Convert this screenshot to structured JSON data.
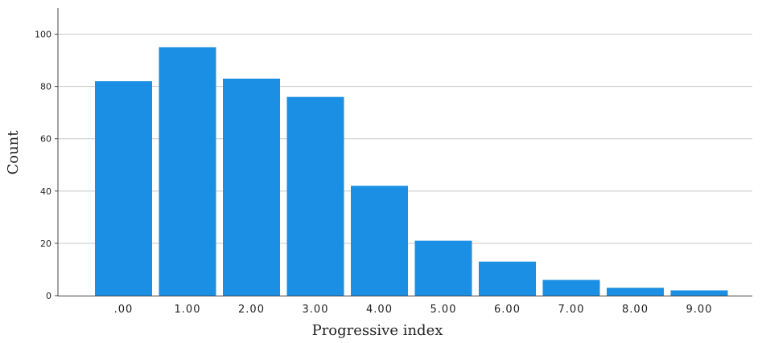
{
  "chart_data": {
    "type": "bar",
    "categories": [
      ".00",
      "1.00",
      "2.00",
      "3.00",
      "4.00",
      "5.00",
      "6.00",
      "7.00",
      "8.00",
      "9.00"
    ],
    "values": [
      82,
      95,
      83,
      76,
      42,
      21,
      13,
      6,
      3,
      2
    ],
    "xlabel": "Progressive index",
    "ylabel": "Count",
    "ylim": [
      0,
      110
    ],
    "yticks": [
      "0",
      "20",
      "40",
      "60",
      "80",
      "100"
    ],
    "grid": true,
    "colors": {
      "bar": "#1a8fe3",
      "grid": "#c8c8c8",
      "axis": "#444444"
    }
  }
}
